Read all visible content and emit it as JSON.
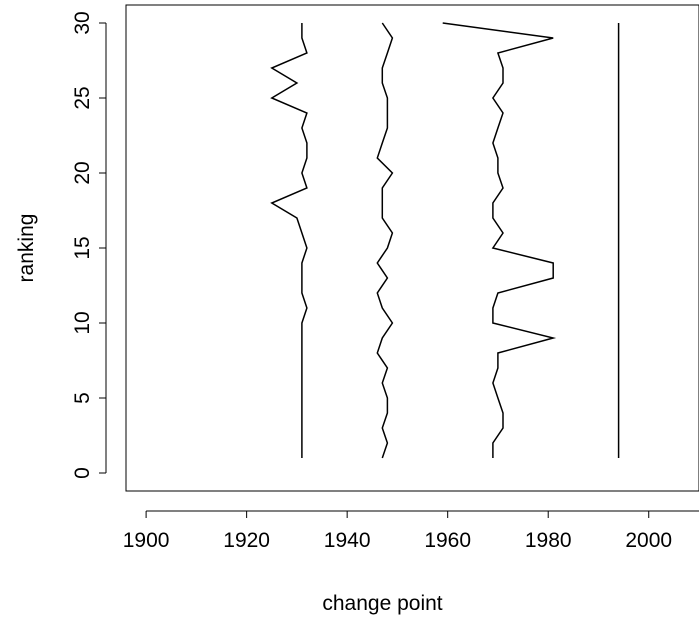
{
  "chart_data": {
    "type": "line",
    "title": "",
    "xlabel": "change point",
    "ylabel": "ranking",
    "xlim": [
      1896,
      2010
    ],
    "ylim": [
      31.2,
      -1.2
    ],
    "x_ticks": [
      1900,
      1920,
      1940,
      1960,
      1980,
      2000
    ],
    "y_ticks": [
      0,
      5,
      10,
      15,
      20,
      25,
      30
    ],
    "grid": false,
    "legend": "none",
    "line_color": "#000000",
    "series": [
      {
        "y": [
          1,
          2,
          3,
          4,
          5,
          6,
          7,
          8,
          9,
          10,
          11,
          12,
          13,
          14,
          15,
          16,
          17,
          18,
          19,
          20,
          21,
          22,
          23,
          24,
          25,
          26,
          27,
          28,
          29,
          30
        ],
        "x": [
          1931,
          1931,
          1931,
          1931,
          1931,
          1931,
          1931,
          1931,
          1931,
          1931,
          1932,
          1931,
          1931,
          1931,
          1932,
          1931,
          1930,
          1925,
          1932,
          1931,
          1932,
          1932,
          1931,
          1932,
          1925,
          1930,
          1925,
          1932,
          1931,
          1931
        ]
      },
      {
        "y": [
          1,
          2,
          3,
          4,
          5,
          6,
          7,
          8,
          9,
          10,
          11,
          12,
          13,
          14,
          15,
          16,
          17,
          18,
          19,
          20,
          21,
          22,
          23,
          24,
          25,
          26,
          27,
          28,
          29,
          30
        ],
        "x": [
          1947,
          1948,
          1947,
          1948,
          1948,
          1947,
          1948,
          1946,
          1947,
          1949,
          1947,
          1946,
          1948,
          1946,
          1948,
          1949,
          1947,
          1947,
          1947,
          1949,
          1946,
          1947,
          1948,
          1948,
          1948,
          1947,
          1947,
          1948,
          1949,
          1947
        ]
      },
      {
        "y": [
          1,
          2,
          3,
          4,
          5,
          6,
          7,
          8,
          9,
          10,
          11,
          12,
          13,
          14,
          15,
          16,
          17,
          18,
          19,
          20,
          21,
          22,
          23,
          24,
          25,
          26,
          27,
          28,
          29,
          30
        ],
        "x": [
          1969,
          1969,
          1971,
          1971,
          1970,
          1969,
          1970,
          1970,
          1981,
          1969,
          1969,
          1970,
          1981,
          1981,
          1969,
          1971,
          1969,
          1969,
          1971,
          1970,
          1970,
          1969,
          1970,
          1971,
          1969,
          1971,
          1971,
          1970,
          1981,
          1959
        ]
      },
      {
        "y": [
          1,
          30
        ],
        "x": [
          1994,
          1994
        ]
      }
    ]
  }
}
